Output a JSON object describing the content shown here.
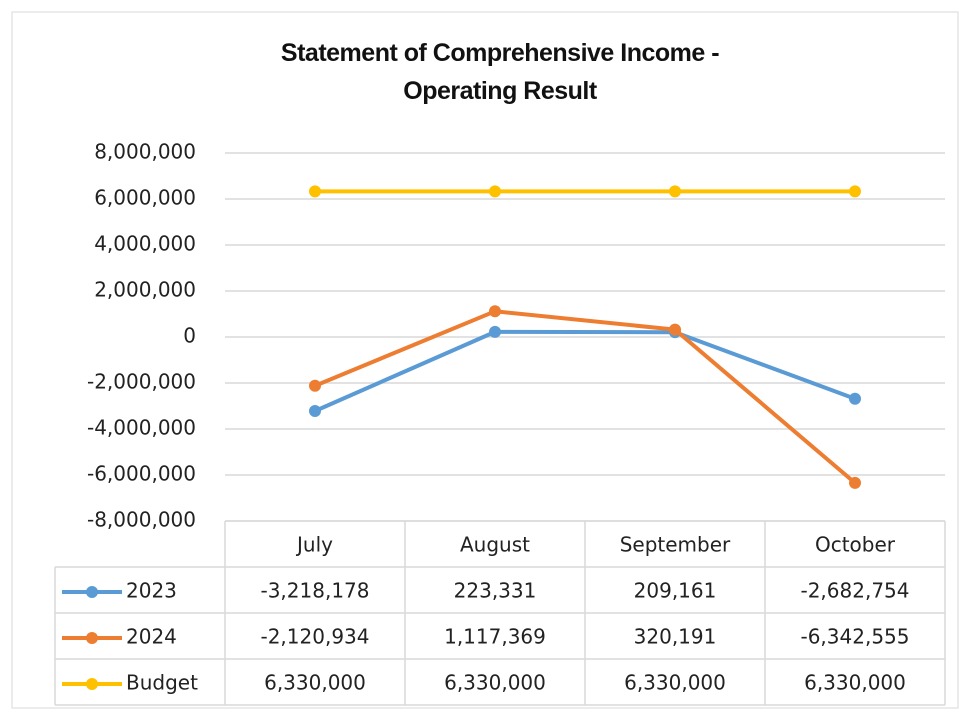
{
  "chart_data": {
    "type": "line",
    "title": "Statement of Comprehensive Income - Operating Result",
    "categories": [
      "July",
      "August",
      "September",
      "October"
    ],
    "series": [
      {
        "name": "2023",
        "color": "#5b9bd5",
        "values": [
          -3218178,
          223331,
          209161,
          -2682754
        ],
        "value_labels": [
          "-3,218,178",
          "223,331",
          "209,161",
          "-2,682,754"
        ]
      },
      {
        "name": "2024",
        "color": "#ed7d31",
        "values": [
          -2120934,
          1117369,
          320191,
          -6342555
        ],
        "value_labels": [
          "-2,120,934",
          "1,117,369",
          "320,191",
          "-6,342,555"
        ]
      },
      {
        "name": "Budget",
        "color": "#ffc000",
        "values": [
          6330000,
          6330000,
          6330000,
          6330000
        ],
        "value_labels": [
          "6,330,000",
          "6,330,000",
          "6,330,000",
          "6,330,000"
        ]
      }
    ],
    "ylim": [
      -8000000,
      8000000
    ],
    "yticks": [
      {
        "value": -8000000,
        "label": "-8,000,000"
      },
      {
        "value": -6000000,
        "label": "-6,000,000"
      },
      {
        "value": -4000000,
        "label": "-4,000,000"
      },
      {
        "value": -2000000,
        "label": "-2,000,000"
      },
      0,
      {
        "value": 2000000,
        "label": "2,000,000"
      },
      {
        "value": 4000000,
        "label": "4,000,000"
      },
      {
        "value": 6000000,
        "label": "6,000,000"
      },
      {
        "value": 8000000,
        "label": "8,000,000"
      }
    ],
    "grid": true,
    "data_table": true,
    "negative_tick_color": "#ff0000"
  }
}
